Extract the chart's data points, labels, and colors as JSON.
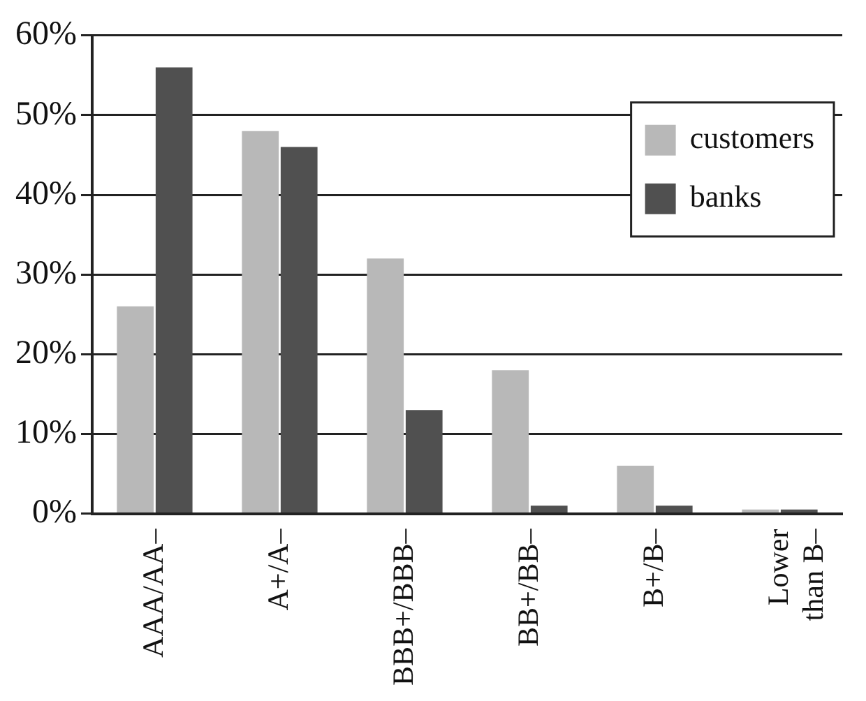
{
  "chart_data": {
    "type": "bar",
    "categories": [
      "AAA/AA–",
      "A+/A–",
      "BBB+/BBB–",
      "BB+/BB–",
      "B+/B–",
      "Lower than B–"
    ],
    "series": [
      {
        "name": "customers",
        "color": "#b8b8b8",
        "values": [
          26,
          48,
          32,
          18,
          6,
          0.5
        ]
      },
      {
        "name": "banks",
        "color": "#505050",
        "values": [
          56,
          46,
          13,
          1,
          1,
          0.5
        ]
      }
    ],
    "ylim": [
      0,
      60
    ],
    "yticks": [
      {
        "value": 0,
        "label": "0%"
      },
      {
        "value": 10,
        "label": "10%"
      },
      {
        "value": 20,
        "label": "20%"
      },
      {
        "value": 30,
        "label": "30%"
      },
      {
        "value": 40,
        "label": "40%"
      },
      {
        "value": 50,
        "label": "50%"
      },
      {
        "value": 60,
        "label": "60%"
      }
    ],
    "grid": "y",
    "legend": "top right"
  }
}
